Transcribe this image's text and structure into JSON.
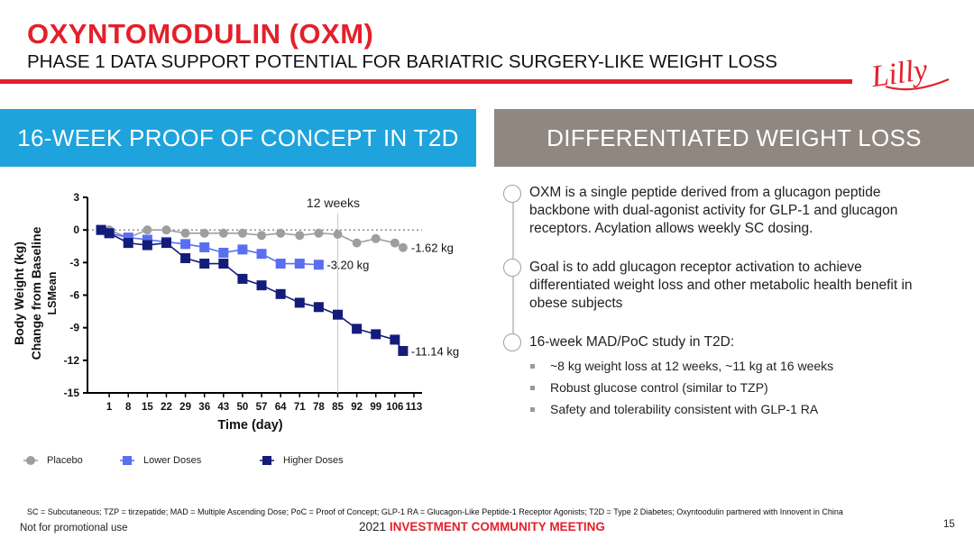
{
  "header": {
    "title": "OXYNTOMODULIN (OXM)",
    "subtitle": "PHASE 1 DATA SUPPORT POTENTIAL FOR BARIATRIC SURGERY-LIKE WEIGHT LOSS",
    "logo_text": "Lilly",
    "brand_color": "#e3202b"
  },
  "left_panel": {
    "heading": "16-WEEK PROOF OF CONCEPT IN T2D",
    "color": "#1ea3dc"
  },
  "right_panel": {
    "heading": "DIFFERENTIATED WEIGHT LOSS",
    "color": "#8f8780"
  },
  "chart_data": {
    "type": "line",
    "xlabel": "Time (day)",
    "ylabel_lines": [
      "Body Weight (kg)",
      "Change from Baseline",
      "LSMean"
    ],
    "x_ticks": [
      1,
      8,
      15,
      22,
      29,
      36,
      43,
      50,
      57,
      64,
      71,
      78,
      85,
      92,
      99,
      106,
      113
    ],
    "y_ticks": [
      3,
      0,
      -3,
      -6,
      -9,
      -12,
      -15
    ],
    "xlim": [
      -7,
      116
    ],
    "ylim": [
      -15,
      3
    ],
    "annotation": "12 weeks",
    "annotation_x": 85,
    "series": [
      {
        "name": "Placebo",
        "color": "#9e9e9e",
        "marker": "circle",
        "x": [
          -2,
          1,
          8,
          15,
          22,
          29,
          36,
          43,
          50,
          57,
          64,
          71,
          78,
          85,
          92,
          99,
          106,
          109
        ],
        "y": [
          0,
          0,
          -0.7,
          0,
          0,
          -0.3,
          -0.3,
          -0.3,
          -0.3,
          -0.5,
          -0.3,
          -0.5,
          -0.3,
          -0.4,
          -1.2,
          -0.8,
          -1.2,
          -1.62
        ],
        "end_label": "-1.62 kg"
      },
      {
        "name": "Lower Doses",
        "color": "#5a6ff0",
        "marker": "square",
        "x": [
          -2,
          1,
          8,
          15,
          22,
          29,
          36,
          43,
          50,
          57,
          64,
          71,
          78
        ],
        "y": [
          0,
          -0.3,
          -0.7,
          -0.9,
          -1.1,
          -1.3,
          -1.6,
          -2.1,
          -1.8,
          -2.2,
          -3.1,
          -3.1,
          -3.2
        ],
        "end_label": "-3.20 kg"
      },
      {
        "name": "Higher Doses",
        "color": "#141c7a",
        "marker": "square",
        "x": [
          -2,
          1,
          8,
          15,
          22,
          29,
          36,
          43,
          50,
          57,
          64,
          71,
          78,
          85,
          92,
          99,
          106,
          109
        ],
        "y": [
          0,
          -0.3,
          -1.2,
          -1.4,
          -1.2,
          -2.6,
          -3.1,
          -3.1,
          -4.5,
          -5.1,
          -5.9,
          -6.7,
          -7.1,
          -7.8,
          -9.1,
          -9.6,
          -10.1,
          -11.14
        ],
        "end_label": "-11.14 kg"
      }
    ]
  },
  "legend": [
    "Placebo",
    "Lower Doses",
    "Higher Doses"
  ],
  "bullets": [
    {
      "text": "OXM is a single peptide derived from a glucagon peptide backbone with dual-agonist activity for GLP-1 and glucagon receptors. Acylation allows weekly SC dosing."
    },
    {
      "text": "Goal is to add glucagon receptor activation to achieve differentiated weight loss and other metabolic health benefit in obese subjects"
    },
    {
      "text": "16-week MAD/PoC study in T2D:"
    }
  ],
  "sub_bullets": [
    "~8 kg weight loss at 12 weeks, ~11 kg at 16 weeks",
    "Robust glucose control (similar to TZP)",
    "Safety and tolerability consistent with GLP-1 RA"
  ],
  "footer": {
    "footnote": "SC = Subcutaneous; TZP = tirzepatide; MAD = Multiple Ascending Dose; PoC = Proof of Concept; GLP-1 RA = Glucagon-Like Peptide-1 Receptor Agonists; T2D = Type 2 Diabetes; Oxyntoodulin partnered with Innovent in China",
    "not_promo": "Not for promotional use",
    "meeting_year": "2021",
    "meeting_name": "INVESTMENT COMMUNITY MEETING",
    "page": "15"
  }
}
